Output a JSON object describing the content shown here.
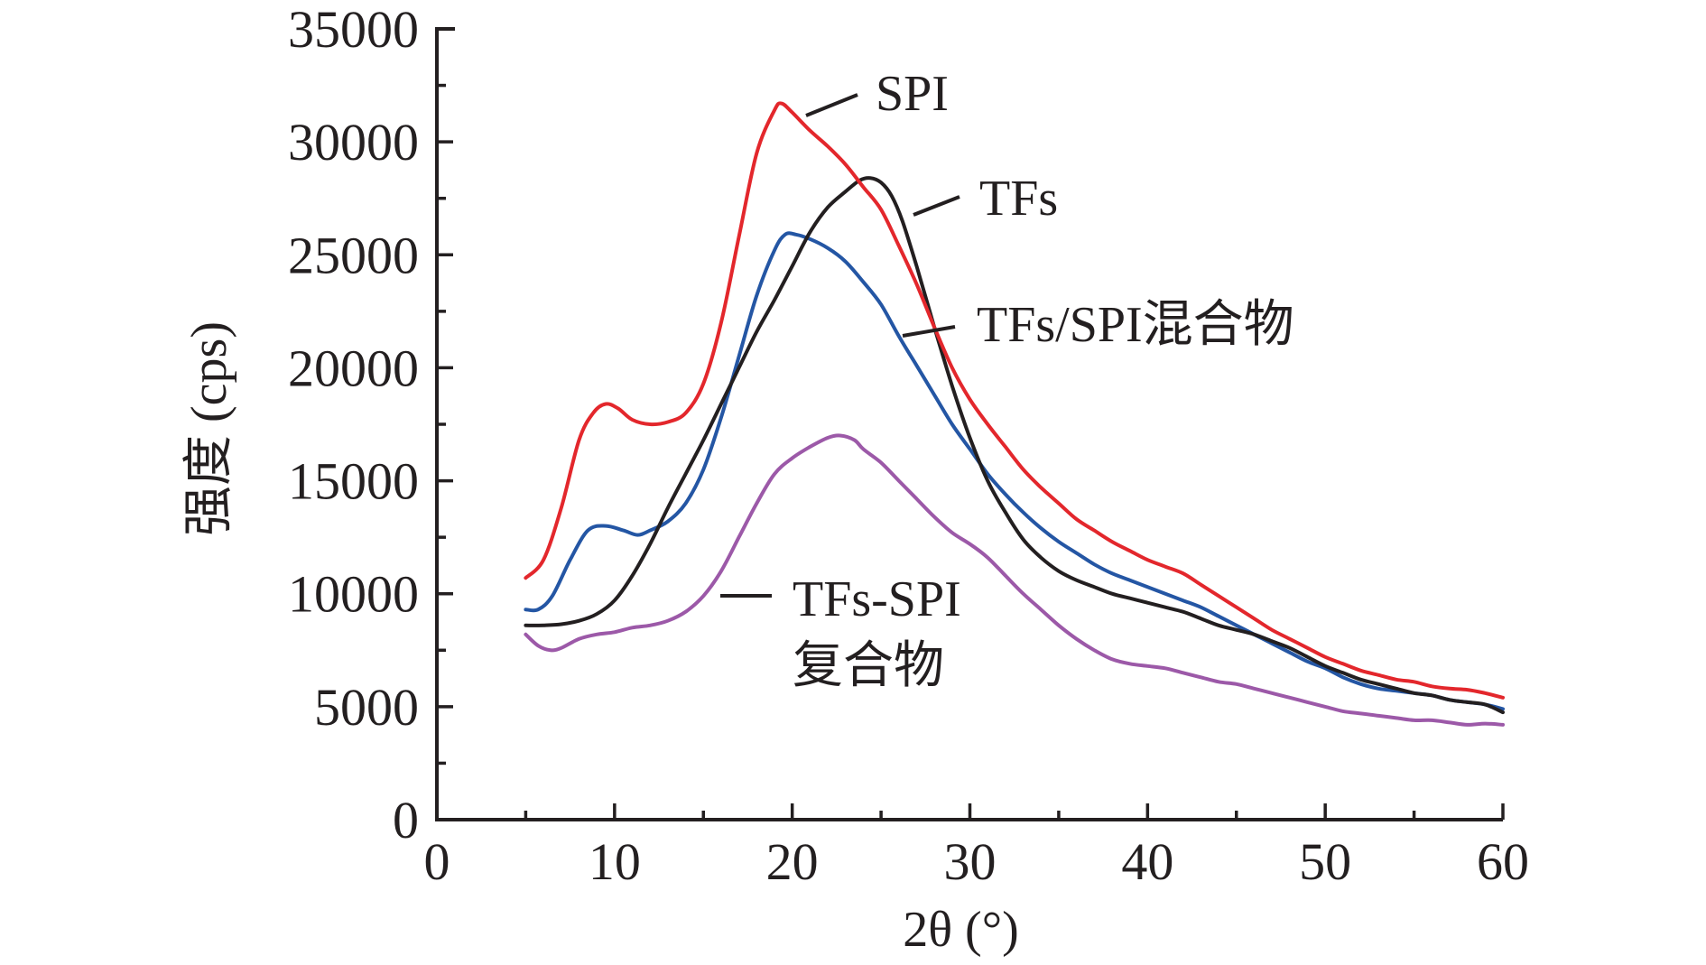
{
  "chart_data": {
    "type": "line",
    "title": "",
    "xlabel": "2θ (°)",
    "ylabel": "强度 (cps)",
    "xlim": [
      0,
      60
    ],
    "ylim": [
      0,
      35000
    ],
    "grid": false,
    "legend": "inline-annotations",
    "x_ticks": [
      0,
      10,
      20,
      30,
      40,
      50,
      60
    ],
    "x_tick_labels": [
      "0",
      "10",
      "20",
      "30",
      "40",
      "50",
      "60"
    ],
    "x_minor_step": 5,
    "y_ticks": [
      0,
      5000,
      10000,
      15000,
      20000,
      25000,
      30000,
      35000
    ],
    "y_tick_labels": [
      "0",
      "5000",
      "10000",
      "15000",
      "20000",
      "25000",
      "30000",
      "35000"
    ],
    "y_minor_step": 2500,
    "series": [
      {
        "name": "SPI",
        "label_lines": [
          "SPI"
        ],
        "color": "#e3272c",
        "x": [
          5,
          6,
          7,
          8,
          8.8,
          9.5,
          10.2,
          11,
          12,
          13,
          14,
          15,
          16,
          17,
          18,
          19,
          19.4,
          20,
          21,
          22,
          23,
          24,
          25,
          26,
          27,
          28,
          29,
          30,
          31,
          32,
          33,
          34,
          35,
          36,
          37,
          38,
          39,
          40,
          41,
          42,
          43,
          44,
          45,
          46,
          47,
          48,
          49,
          50,
          51,
          52,
          53,
          54,
          55,
          56,
          57,
          58,
          59,
          60
        ],
        "y": [
          10700,
          11500,
          13800,
          16800,
          18000,
          18400,
          18200,
          17700,
          17500,
          17600,
          18000,
          19300,
          22000,
          25800,
          29500,
          31400,
          31700,
          31300,
          30500,
          29800,
          29000,
          28000,
          27000,
          25400,
          23700,
          21800,
          20000,
          18600,
          17500,
          16500,
          15500,
          14700,
          14000,
          13300,
          12800,
          12300,
          11900,
          11500,
          11200,
          10900,
          10400,
          9900,
          9400,
          8900,
          8400,
          8000,
          7600,
          7200,
          6900,
          6600,
          6400,
          6200,
          6100,
          5900,
          5800,
          5750,
          5600,
          5400
        ]
      },
      {
        "name": "TFs",
        "label_lines": [
          "TFs"
        ],
        "color": "#231f20",
        "x": [
          5,
          6,
          7,
          8,
          9,
          10,
          11,
          12,
          13,
          14,
          15,
          16,
          17,
          18,
          19,
          20,
          21,
          22,
          23,
          23.8,
          24.4,
          25,
          25.6,
          26.2,
          27,
          28,
          29,
          30,
          31,
          32,
          33,
          34,
          35,
          36,
          37,
          38,
          39,
          40,
          41,
          42,
          43,
          44,
          45,
          46,
          47,
          48,
          49,
          50,
          51,
          52,
          53,
          54,
          55,
          56,
          57,
          58,
          59,
          60
        ],
        "y": [
          8600,
          8600,
          8650,
          8800,
          9100,
          9700,
          10800,
          12200,
          13800,
          15300,
          16800,
          18400,
          20000,
          21600,
          23000,
          24500,
          26000,
          27100,
          27800,
          28300,
          28400,
          28200,
          27600,
          26500,
          24500,
          21800,
          19200,
          16900,
          15000,
          13600,
          12400,
          11600,
          11000,
          10600,
          10300,
          10000,
          9800,
          9600,
          9400,
          9200,
          8900,
          8600,
          8400,
          8200,
          7900,
          7600,
          7200,
          6800,
          6500,
          6200,
          6000,
          5800,
          5600,
          5500,
          5300,
          5200,
          5100,
          4750
        ]
      },
      {
        "name": "TFs/SPI混合物",
        "label_lines": [
          "TFs/SPI混合物"
        ],
        "color": "#2456a4",
        "x": [
          5,
          5.7,
          6.5,
          7.5,
          8.5,
          9.5,
          10.5,
          11.3,
          12,
          13,
          14,
          15,
          16,
          17,
          18,
          19,
          19.6,
          20.2,
          21,
          22,
          23,
          24,
          25,
          26,
          27,
          28,
          29,
          30,
          31,
          32,
          33,
          34,
          35,
          36,
          37,
          38,
          39,
          40,
          41,
          42,
          43,
          44,
          45,
          46,
          47,
          48,
          49,
          50,
          51,
          52,
          53,
          54,
          55,
          56,
          57,
          58,
          59,
          60
        ],
        "y": [
          9300,
          9300,
          9900,
          11500,
          12800,
          13000,
          12800,
          12600,
          12800,
          13200,
          14000,
          15500,
          17800,
          20500,
          23200,
          25200,
          25900,
          25900,
          25700,
          25300,
          24700,
          23800,
          22800,
          21400,
          20100,
          18800,
          17500,
          16400,
          15300,
          14400,
          13600,
          12900,
          12300,
          11800,
          11300,
          10900,
          10600,
          10300,
          10000,
          9700,
          9400,
          9000,
          8600,
          8200,
          7800,
          7400,
          7000,
          6700,
          6300,
          6000,
          5800,
          5700,
          5600,
          5500,
          5300,
          5200,
          5100,
          4900
        ]
      },
      {
        "name": "TFs-SPI复合物",
        "label_lines": [
          "TFs-SPI",
          "复合物"
        ],
        "color": "#9c59a8",
        "x": [
          5,
          5.7,
          6.4,
          7,
          8,
          9,
          10,
          11,
          12,
          13,
          14,
          15,
          16,
          17,
          18,
          19,
          20,
          21,
          22,
          22.7,
          23.5,
          24,
          25,
          26,
          27,
          28,
          29,
          30,
          31,
          32,
          33,
          34,
          35,
          36,
          37,
          38,
          39,
          40,
          41,
          42,
          43,
          44,
          45,
          46,
          47,
          48,
          49,
          50,
          51,
          52,
          53,
          54,
          55,
          56,
          57,
          58,
          59,
          60
        ],
        "y": [
          8200,
          7700,
          7500,
          7600,
          8000,
          8200,
          8300,
          8500,
          8600,
          8800,
          9200,
          9900,
          11000,
          12500,
          14000,
          15300,
          16000,
          16500,
          16900,
          17000,
          16800,
          16400,
          15800,
          15000,
          14200,
          13400,
          12700,
          12200,
          11600,
          10800,
          10000,
          9300,
          8600,
          8000,
          7500,
          7100,
          6900,
          6800,
          6700,
          6500,
          6300,
          6100,
          6000,
          5800,
          5600,
          5400,
          5200,
          5000,
          4800,
          4700,
          4600,
          4500,
          4400,
          4400,
          4300,
          4200,
          4250,
          4200
        ]
      }
    ],
    "annotations": [
      {
        "series": "SPI",
        "text_lines": [
          "SPI"
        ]
      },
      {
        "series": "TFs",
        "text_lines": [
          "TFs"
        ]
      },
      {
        "series": "TFs/SPI混合物",
        "text_lines": [
          "TFs/SPI混合物"
        ]
      },
      {
        "series": "TFs-SPI复合物",
        "text_lines": [
          "TFs-SPI",
          "复合物"
        ]
      }
    ]
  }
}
